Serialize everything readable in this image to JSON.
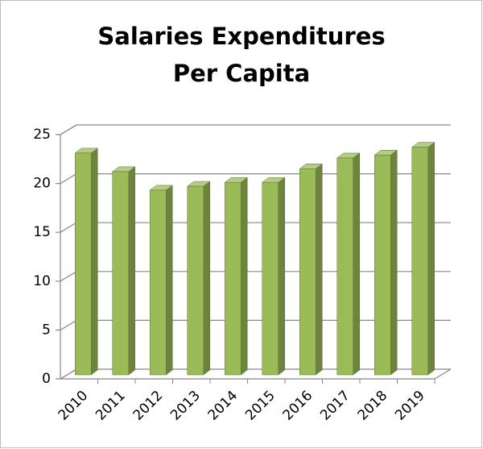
{
  "chart_data": {
    "type": "bar3d",
    "title": "Salaries Expenditures Per Capita",
    "categories": [
      "2010",
      "2011",
      "2012",
      "2013",
      "2014",
      "2015",
      "2016",
      "2017",
      "2018",
      "2019"
    ],
    "values": [
      22.7,
      20.8,
      18.9,
      19.3,
      19.7,
      19.7,
      21.1,
      22.2,
      22.5,
      23.3
    ],
    "color": "#9bbb59",
    "ylim": [
      0,
      25
    ],
    "yticks": [
      0,
      5,
      10,
      15,
      20,
      25
    ],
    "grid": true
  }
}
